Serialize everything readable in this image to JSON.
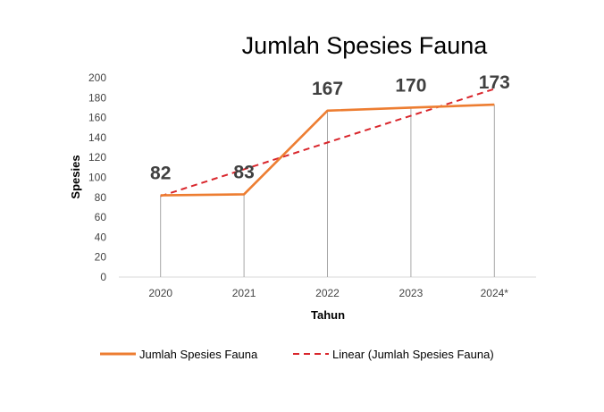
{
  "chart_data": {
    "type": "line",
    "title": "Jumlah Spesies Fauna",
    "xlabel": "Tahun",
    "ylabel": "Spesies",
    "categories": [
      "2020",
      "2021",
      "2022",
      "2023",
      "2024*"
    ],
    "series": [
      {
        "name": "Jumlah Spesies Fauna",
        "values": [
          82,
          83,
          167,
          170,
          173
        ],
        "color": "#ED7D31"
      }
    ],
    "trendline": {
      "name": "Linear (Jumlah Spesies Fauna)",
      "type": "linear",
      "color": "#D9262C",
      "dashed": true
    },
    "data_labels": [
      "82",
      "83",
      "167",
      "170",
      "173"
    ],
    "ylim": [
      0,
      200
    ],
    "yticks": [
      "0",
      "20",
      "40",
      "60",
      "80",
      "100",
      "120",
      "140",
      "160",
      "180",
      "200"
    ],
    "grid": false,
    "drop_lines": true,
    "legend_position": "bottom"
  }
}
